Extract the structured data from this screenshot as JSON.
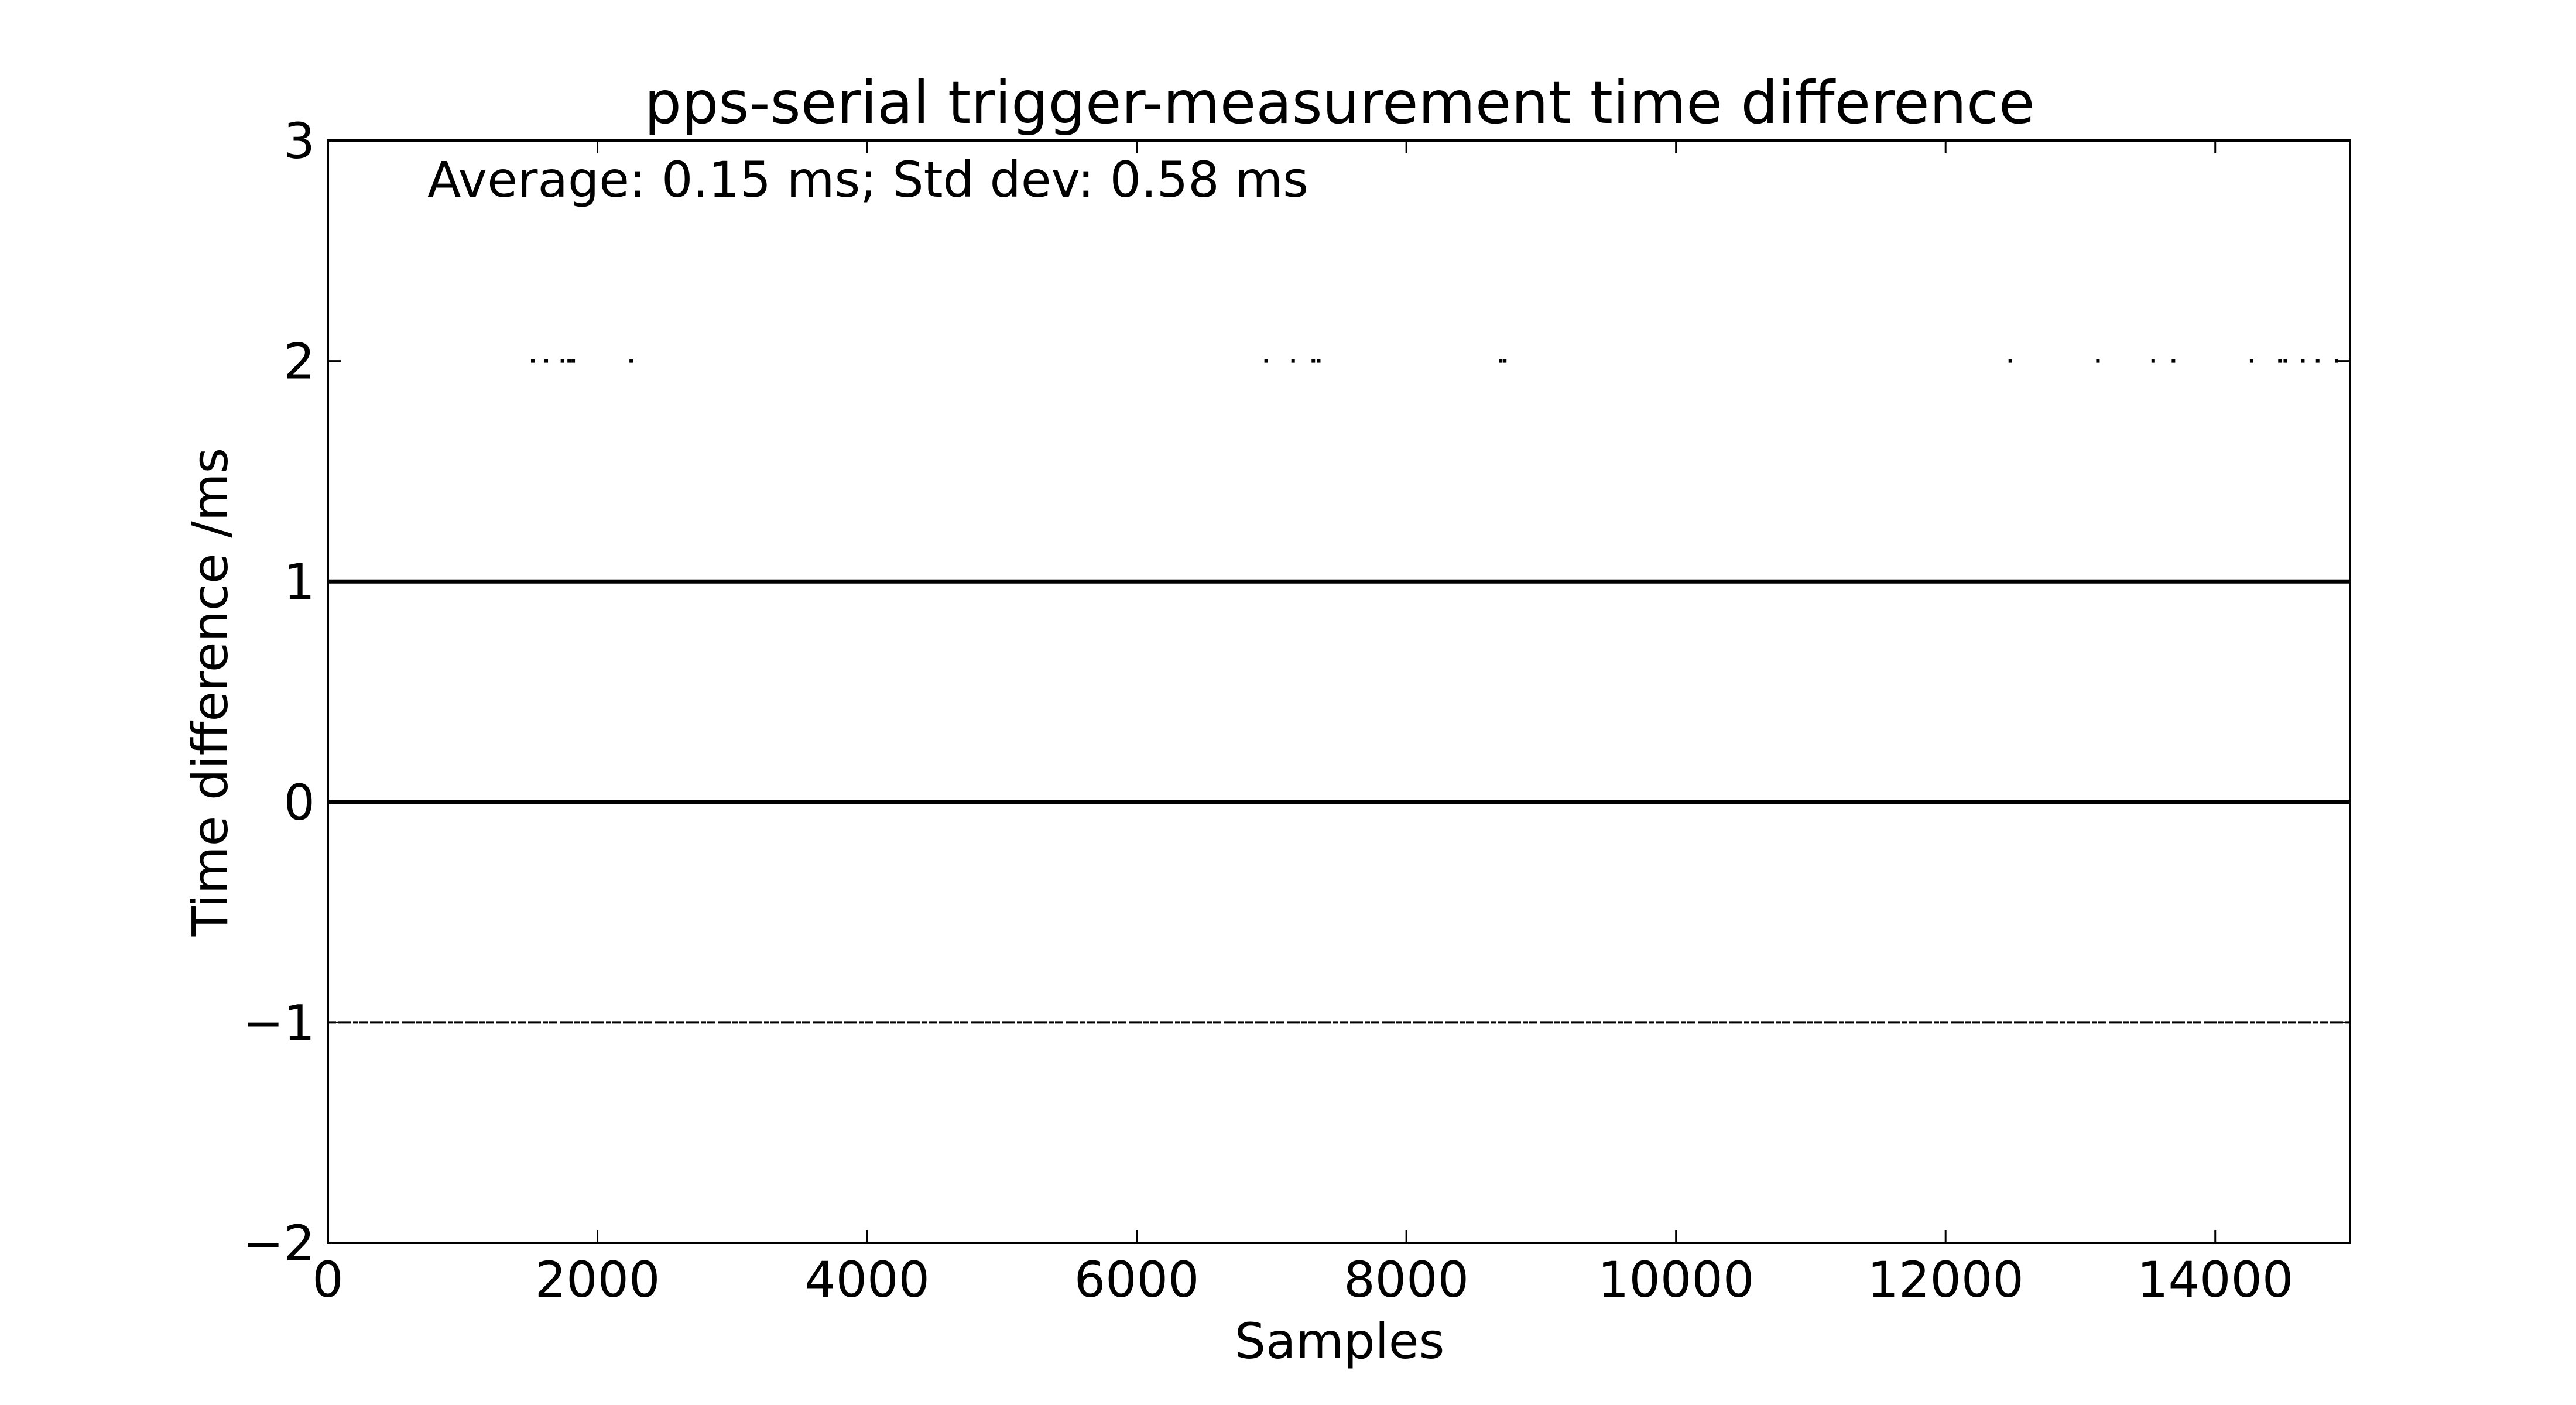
{
  "chart_data": {
    "type": "scatter",
    "title": "pps-serial trigger-measurement time difference",
    "xlabel": "Samples",
    "ylabel": "Time difference /ms",
    "annotation": "Average: 0.15 ms;  Std dev: 0.58 ms",
    "xlim": [
      0,
      15000
    ],
    "ylim": [
      -2,
      3
    ],
    "grid": false,
    "legend": "none",
    "marker_color": "#000000",
    "x_ticks": [
      {
        "value": 0,
        "label": "0"
      },
      {
        "value": 2000,
        "label": "2000"
      },
      {
        "value": 4000,
        "label": "4000"
      },
      {
        "value": 6000,
        "label": "6000"
      },
      {
        "value": 8000,
        "label": "8000"
      },
      {
        "value": 10000,
        "label": "10000"
      },
      {
        "value": 12000,
        "label": "12000"
      },
      {
        "value": 14000,
        "label": "14000"
      }
    ],
    "y_ticks": [
      {
        "value": -2,
        "label": "−2"
      },
      {
        "value": -1,
        "label": "−1"
      },
      {
        "value": 0,
        "label": "0"
      },
      {
        "value": 1,
        "label": "1"
      },
      {
        "value": 2,
        "label": "2"
      },
      {
        "value": 3,
        "label": "3"
      }
    ],
    "series": [
      {
        "values_description_free": true,
        "dense_ranges": [
          {
            "y": 1,
            "x_start": 0,
            "x_end": 15000
          },
          {
            "y": 0,
            "x_start": 0,
            "x_end": 15000
          }
        ],
        "sparse_y_minus1_gaps": [],
        "points": [
          {
            "x": 1520,
            "y": 2
          },
          {
            "x": 1620,
            "y": 2
          },
          {
            "x": 1740,
            "y": 2
          },
          {
            "x": 1790,
            "y": 2
          },
          {
            "x": 1820,
            "y": 2
          },
          {
            "x": 2250,
            "y": 2
          },
          {
            "x": 6960,
            "y": 2
          },
          {
            "x": 7160,
            "y": 2
          },
          {
            "x": 7310,
            "y": 2
          },
          {
            "x": 7350,
            "y": 2
          },
          {
            "x": 8700,
            "y": 2
          },
          {
            "x": 8730,
            "y": 2
          },
          {
            "x": 12480,
            "y": 2
          },
          {
            "x": 13130,
            "y": 2
          },
          {
            "x": 13540,
            "y": 2
          },
          {
            "x": 13690,
            "y": 2
          },
          {
            "x": 14270,
            "y": 2
          },
          {
            "x": 14480,
            "y": 2
          },
          {
            "x": 14520,
            "y": 2
          },
          {
            "x": 14650,
            "y": 2
          },
          {
            "x": 14760,
            "y": 2
          },
          {
            "x": 14900,
            "y": 2
          }
        ],
        "minus1_range": {
          "y": -1,
          "x_start": 0,
          "x_end": 15000
        }
      }
    ]
  }
}
